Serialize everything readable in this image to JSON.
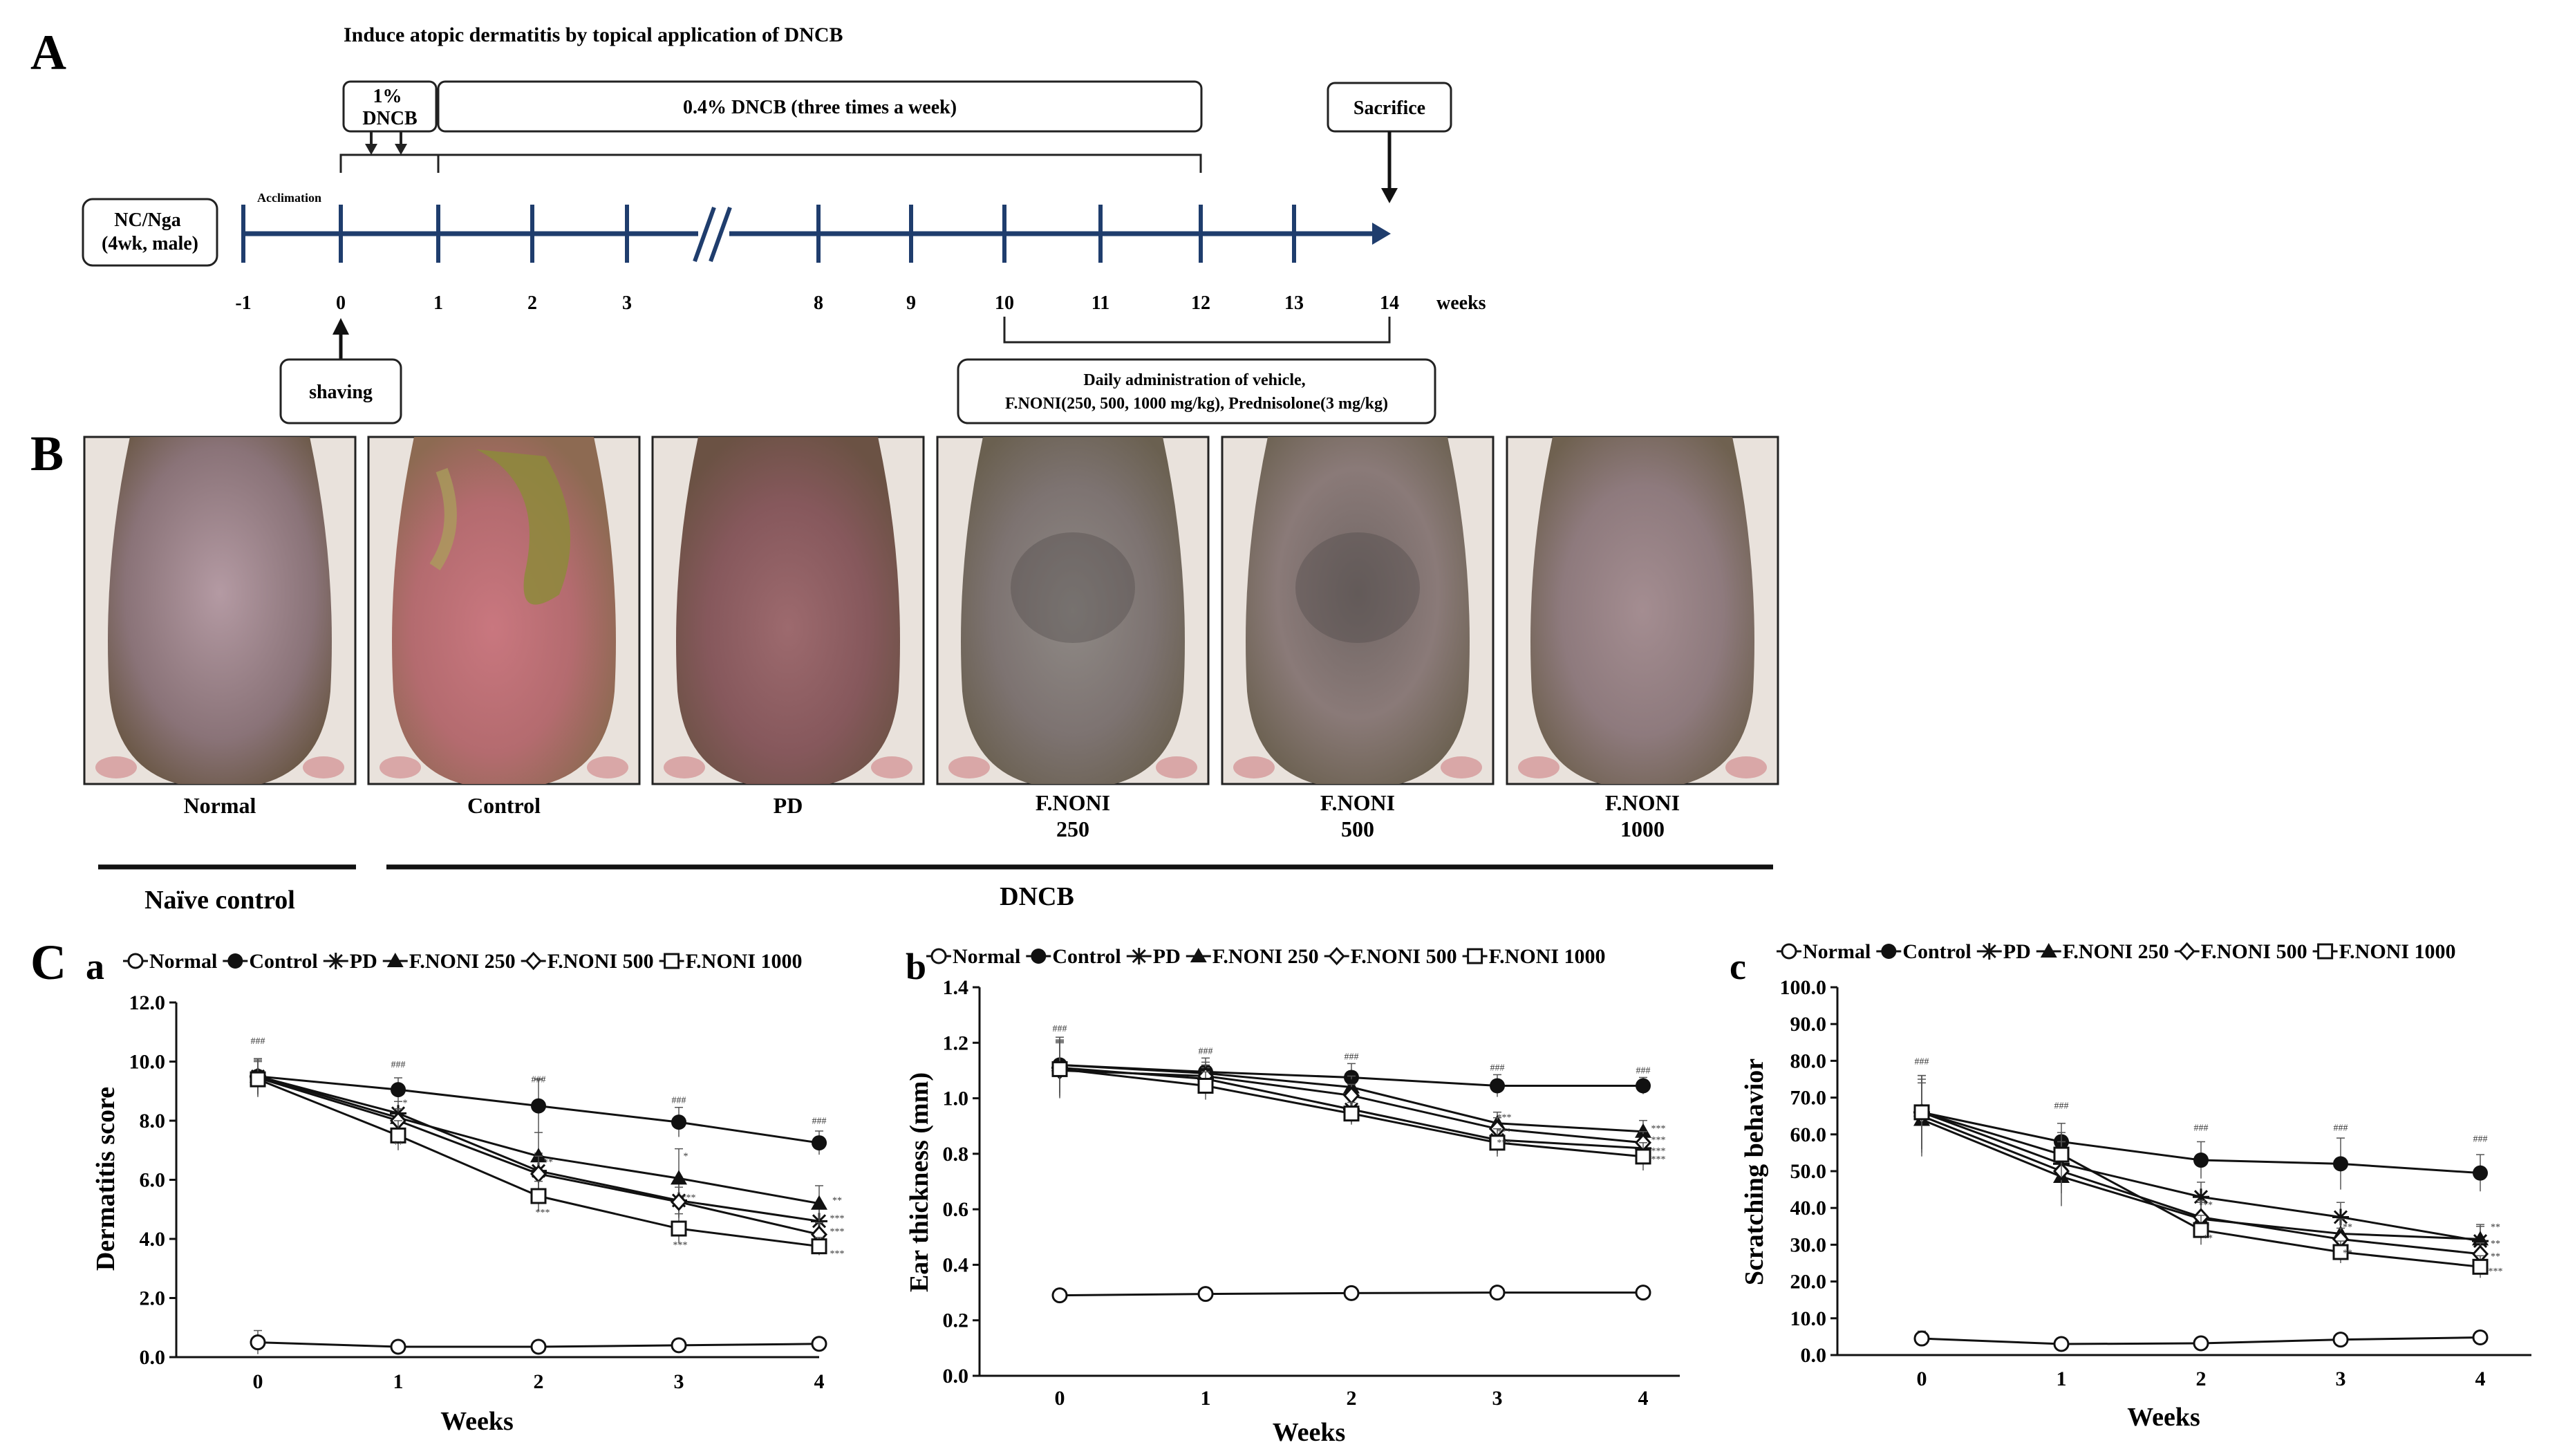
{
  "panel_labels": {
    "A": "A",
    "B": "B",
    "C": "C",
    "a": "a",
    "b": "b",
    "c": "c"
  },
  "timeline": {
    "title": "Induce atopic dermatitis by topical application of DNCB",
    "box_start": "1%\nDNCB",
    "box_maintain": "0.4% DNCB (three times a week)",
    "box_sacrifice": "Sacrifice",
    "box_mouse": "NC/Nga\n(4wk, male)",
    "acclimation": "Acclimation",
    "box_shaving": "shaving",
    "box_admin": "Daily administration of vehicle,\nF.NONI(250, 500, 1000 mg/kg), Prednisolone(3 mg/kg)",
    "ticks": [
      "-1",
      "0",
      "1",
      "2",
      "3",
      "8",
      "9",
      "10",
      "11",
      "12",
      "13",
      "14"
    ],
    "weeks_label": "weeks",
    "axis_color": "#1f3d6d"
  },
  "photos": {
    "labels": [
      "Normal",
      "Control",
      "PD",
      "F.NONI\n250",
      "F.NONI\n500",
      "F.NONI\n1000"
    ],
    "group_naive": "Naïve control",
    "group_dncb": "DNCB"
  },
  "chart_data": [
    {
      "type": "line",
      "panel": "a",
      "xlabel": "Weeks",
      "ylabel": "Dermatitis score",
      "x": [
        0,
        1,
        2,
        3,
        4
      ],
      "x_ticks": [
        "0",
        "1",
        "2",
        "3",
        "4"
      ],
      "y_ticks": [
        "0.0",
        "2.0",
        "4.0",
        "6.0",
        "8.0",
        "10.0",
        "12.0"
      ],
      "ylim": [
        0,
        12
      ],
      "legend": [
        "Normal",
        "Control",
        "PD",
        "F.NONI 250",
        "F.NONI 500",
        "F.NONI 1000"
      ],
      "series": [
        {
          "name": "Normal",
          "marker": "circle-open",
          "values": [
            0.5,
            0.35,
            0.35,
            0.4,
            0.45
          ],
          "err": [
            0.4,
            0.1,
            0.1,
            0.1,
            0.1
          ]
        },
        {
          "name": "Control",
          "marker": "circle-filled",
          "values": [
            9.5,
            9.05,
            8.5,
            7.95,
            7.25
          ],
          "err": [
            0.6,
            0.4,
            0.9,
            0.5,
            0.4
          ]
        },
        {
          "name": "PD",
          "marker": "star",
          "values": [
            9.5,
            8.25,
            6.3,
            5.3,
            4.6
          ],
          "err": [
            0.6,
            0.4,
            0.6,
            0.6,
            0.5
          ]
        },
        {
          "name": "F.NONI 250",
          "marker": "triangle-filled",
          "values": [
            9.5,
            8.1,
            6.8,
            6.05,
            5.2
          ],
          "err": [
            0.6,
            0.3,
            0.8,
            1.0,
            0.6
          ]
        },
        {
          "name": "F.NONI 500",
          "marker": "diamond-open",
          "values": [
            9.45,
            8.0,
            6.2,
            5.25,
            4.15
          ],
          "err": [
            0.6,
            0.4,
            0.6,
            0.5,
            0.4
          ]
        },
        {
          "name": "F.NONI 1000",
          "marker": "square-open",
          "values": [
            9.4,
            7.5,
            5.45,
            4.35,
            3.75
          ],
          "err": [
            0.6,
            0.5,
            0.5,
            0.5,
            0.3
          ]
        }
      ],
      "annotations": [
        {
          "x": 0,
          "text": "###",
          "y": 10.6
        },
        {
          "x": 1,
          "text": "###",
          "y": 9.8
        },
        {
          "x": 2,
          "text": "###",
          "y": 9.3
        },
        {
          "x": 3,
          "text": "###",
          "y": 8.6
        },
        {
          "x": 4,
          "text": "###",
          "y": 7.9
        },
        {
          "x": 1,
          "text": "*",
          "y": 8.5,
          "dx": 10
        },
        {
          "x": 1,
          "text": "**",
          "y": 7.1,
          "dx": 0
        },
        {
          "x": 2,
          "text": "**",
          "y": 6.5,
          "dx": 14
        },
        {
          "x": 2,
          "text": "***",
          "y": 4.8,
          "dx": 6
        },
        {
          "x": 3,
          "text": "*",
          "y": 6.7,
          "dx": 10
        },
        {
          "x": 3,
          "text": "***",
          "y": 5.3,
          "dx": 14
        },
        {
          "x": 3,
          "text": "***",
          "y": 3.7,
          "dx": 2
        },
        {
          "x": 4,
          "text": "**",
          "y": 5.2,
          "dx": 26
        },
        {
          "x": 4,
          "text": "***",
          "y": 4.6,
          "dx": 26
        },
        {
          "x": 4,
          "text": "***",
          "y": 4.15,
          "dx": 26
        },
        {
          "x": 4,
          "text": "***",
          "y": 3.4,
          "dx": 26
        }
      ]
    },
    {
      "type": "line",
      "panel": "b",
      "xlabel": "Weeks",
      "ylabel": "Ear thickness (mm)",
      "x": [
        0,
        1,
        2,
        3,
        4
      ],
      "x_ticks": [
        "0",
        "1",
        "2",
        "3",
        "4"
      ],
      "y_ticks": [
        "0.0",
        "0.2",
        "0.4",
        "0.6",
        "0.8",
        "1.0",
        "1.2",
        "1.4"
      ],
      "ylim": [
        0,
        1.4
      ],
      "legend": [
        "Normal",
        "Control",
        "PD",
        "F.NONI 250",
        "F.NONI 500",
        "F.NONI 1000"
      ],
      "series": [
        {
          "name": "Normal",
          "marker": "circle-open",
          "values": [
            0.29,
            0.295,
            0.298,
            0.3,
            0.3
          ],
          "err": [
            0.005,
            0.005,
            0.005,
            0.005,
            0.005
          ]
        },
        {
          "name": "Control",
          "marker": "circle-filled",
          "values": [
            1.12,
            1.095,
            1.075,
            1.045,
            1.045
          ],
          "err": [
            0.1,
            0.05,
            0.05,
            0.04,
            0.03
          ]
        },
        {
          "name": "PD",
          "marker": "star",
          "values": [
            1.11,
            1.07,
            0.96,
            0.85,
            0.82
          ],
          "err": [
            0.1,
            0.04,
            0.05,
            0.05,
            0.04
          ]
        },
        {
          "name": "F.NONI 250",
          "marker": "triangle-filled",
          "values": [
            1.12,
            1.09,
            1.04,
            0.91,
            0.88
          ],
          "err": [
            0.1,
            0.04,
            0.04,
            0.04,
            0.04
          ]
        },
        {
          "name": "F.NONI 500",
          "marker": "diamond-open",
          "values": [
            1.1,
            1.08,
            1.01,
            0.89,
            0.84
          ],
          "err": [
            0.1,
            0.04,
            0.04,
            0.04,
            0.04
          ]
        },
        {
          "name": "F.NONI 1000",
          "marker": "square-open",
          "values": [
            1.105,
            1.045,
            0.945,
            0.84,
            0.79
          ],
          "err": [
            0.1,
            0.05,
            0.04,
            0.05,
            0.05
          ]
        }
      ],
      "annotations": [
        {
          "x": 0,
          "text": "###",
          "y": 1.24
        },
        {
          "x": 1,
          "text": "###",
          "y": 1.16
        },
        {
          "x": 2,
          "text": "###",
          "y": 1.14
        },
        {
          "x": 3,
          "text": "###",
          "y": 1.1
        },
        {
          "x": 4,
          "text": "###",
          "y": 1.09
        },
        {
          "x": 3,
          "text": "***",
          "y": 0.92,
          "dx": 10
        },
        {
          "x": 3,
          "text": "***",
          "y": 0.87,
          "dx": 10
        },
        {
          "x": 3,
          "text": "***",
          "y": 0.83,
          "dx": 10
        },
        {
          "x": 4,
          "text": "***",
          "y": 0.88,
          "dx": 22
        },
        {
          "x": 4,
          "text": "***",
          "y": 0.84,
          "dx": 22
        },
        {
          "x": 4,
          "text": "***",
          "y": 0.8,
          "dx": 22
        },
        {
          "x": 4,
          "text": "***",
          "y": 0.77,
          "dx": 22
        }
      ]
    },
    {
      "type": "line",
      "panel": "c",
      "xlabel": "Weeks",
      "ylabel": "Scratching behavior",
      "x": [
        0,
        1,
        2,
        3,
        4
      ],
      "x_ticks": [
        "0",
        "1",
        "2",
        "3",
        "4"
      ],
      "y_ticks": [
        "0.0",
        "10.0",
        "20.0",
        "30.0",
        "40.0",
        "50.0",
        "60.0",
        "70.0",
        "80.0",
        "90.0",
        "100.0"
      ],
      "ylim": [
        0,
        100
      ],
      "legend": [
        "Normal",
        "Control",
        "PD",
        "F.NONI 250",
        "F.NONI 500",
        "F.NONI 1000"
      ],
      "series": [
        {
          "name": "Normal",
          "marker": "circle-open",
          "values": [
            4.5,
            3.0,
            3.2,
            4.2,
            4.8
          ],
          "err": [
            2,
            0.5,
            0.5,
            1,
            1
          ]
        },
        {
          "name": "Control",
          "marker": "circle-filled",
          "values": [
            66,
            58,
            53,
            52,
            49.5
          ],
          "err": [
            10,
            5,
            5,
            7,
            5
          ]
        },
        {
          "name": "PD",
          "marker": "star",
          "values": [
            66,
            52,
            43,
            37.5,
            31
          ],
          "err": [
            10,
            6,
            4,
            4,
            4
          ]
        },
        {
          "name": "F.NONI 250",
          "marker": "triangle-filled",
          "values": [
            64,
            48.5,
            37,
            33,
            31.5
          ],
          "err": [
            10,
            8,
            5,
            4,
            4
          ]
        },
        {
          "name": "F.NONI 500",
          "marker": "diamond-open",
          "values": [
            65,
            50,
            37.5,
            31.5,
            27.5
          ],
          "err": [
            10,
            6,
            4,
            3,
            3
          ]
        },
        {
          "name": "F.NONI 1000",
          "marker": "square-open",
          "values": [
            66,
            54.5,
            34,
            28,
            24
          ],
          "err": [
            10,
            6,
            4,
            3,
            3
          ]
        }
      ],
      "annotations": [
        {
          "x": 0,
          "text": "###",
          "y": 79
        },
        {
          "x": 1,
          "text": "###",
          "y": 67
        },
        {
          "x": 2,
          "text": "###",
          "y": 61
        },
        {
          "x": 3,
          "text": "###",
          "y": 61
        },
        {
          "x": 4,
          "text": "###",
          "y": 58
        },
        {
          "x": 2,
          "text": "**",
          "y": 40,
          "dx": 10
        },
        {
          "x": 2,
          "text": "**",
          "y": 31,
          "dx": 10
        },
        {
          "x": 3,
          "text": "**",
          "y": 34,
          "dx": 10
        },
        {
          "x": 3,
          "text": "**",
          "y": 27,
          "dx": 10
        },
        {
          "x": 4,
          "text": "**",
          "y": 34,
          "dx": 22
        },
        {
          "x": 4,
          "text": "**",
          "y": 29.5,
          "dx": 22
        },
        {
          "x": 4,
          "text": "**",
          "y": 26,
          "dx": 22
        },
        {
          "x": 4,
          "text": "***",
          "y": 22,
          "dx": 22
        }
      ]
    }
  ]
}
